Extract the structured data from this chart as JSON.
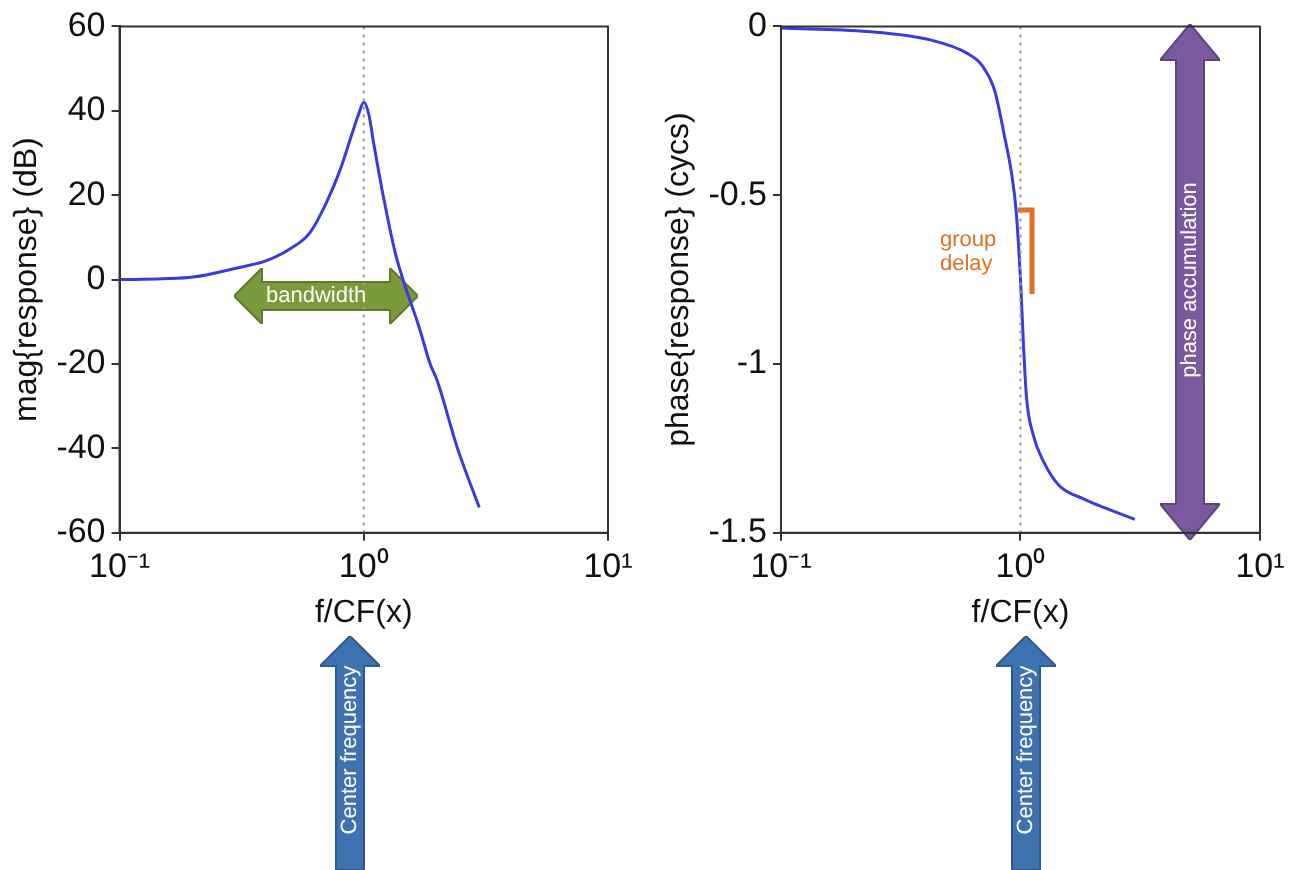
{
  "chart_data": [
    {
      "type": "line",
      "xlabel": "f/CF(x)",
      "ylabel": "mag{response} (dB)",
      "log": "x",
      "grid": false,
      "legend": false,
      "marker": "none",
      "line_style": "solid",
      "color": "#3b3bdc",
      "x": [
        0.1,
        0.15,
        0.2,
        0.3,
        0.4,
        0.5,
        0.6,
        0.7,
        0.8,
        0.9,
        0.95,
        1.0,
        1.05,
        1.1,
        1.2,
        1.35,
        1.7,
        1.87,
        2.0,
        2.42,
        2.97
      ],
      "values": [
        0,
        0.2,
        0.6,
        2.7,
        4.5,
        7.3,
        11,
        18,
        26,
        35,
        39,
        42,
        39,
        32,
        20,
        6,
        -12,
        -20,
        -24,
        -40,
        -54
      ],
      "xlim": [
        0.1,
        10
      ],
      "xticks": [
        {
          "value": 0.1,
          "label": "10⁻¹"
        },
        {
          "value": 1,
          "label": "10⁰"
        },
        {
          "value": 10,
          "label": "10¹"
        }
      ],
      "ylim": [
        -60,
        60
      ],
      "yticks": [
        -60,
        -40,
        -20,
        0,
        20,
        40,
        60
      ],
      "ref_lines": [
        {
          "axis": "x",
          "value": 1,
          "color": "#999999",
          "line_style": "dotted"
        }
      ],
      "annotations": [
        "bandwidth",
        "Center frequency"
      ]
    },
    {
      "type": "line",
      "xlabel": "f/CF(x)",
      "ylabel": "phase{response} (cycs)",
      "log": "x",
      "grid": false,
      "legend": false,
      "marker": "none",
      "line_style": "solid",
      "color": "#3b3bdc",
      "x": [
        0.1,
        0.23,
        0.42,
        0.6,
        0.69,
        0.78,
        0.86,
        0.92,
        0.96,
        1.0,
        1.03,
        1.06,
        1.13,
        1.25,
        1.45,
        1.84,
        3.0
      ],
      "values": [
        -0.005,
        -0.015,
        -0.04,
        -0.08,
        -0.115,
        -0.19,
        -0.33,
        -0.44,
        -0.55,
        -0.75,
        -0.95,
        -1.1,
        -1.21,
        -1.29,
        -1.36,
        -1.4,
        -1.46
      ],
      "xlim": [
        0.1,
        10
      ],
      "xticks": [
        {
          "value": 0.1,
          "label": "10⁻¹"
        },
        {
          "value": 1,
          "label": "10⁰"
        },
        {
          "value": 10,
          "label": "10¹"
        }
      ],
      "ylim": [
        -1.5,
        0
      ],
      "yticks": [
        {
          "value": -1.5,
          "label": "-1.5"
        },
        {
          "value": -1,
          "label": "-1"
        },
        {
          "value": -0.5,
          "label": "-0.5"
        },
        {
          "value": 0,
          "label": "0"
        }
      ],
      "ref_lines": [
        {
          "axis": "x",
          "value": 1,
          "color": "#999999",
          "line_style": "dotted"
        }
      ],
      "annotations": [
        "group delay",
        "phase accumulation",
        "Center frequency"
      ]
    }
  ]
}
